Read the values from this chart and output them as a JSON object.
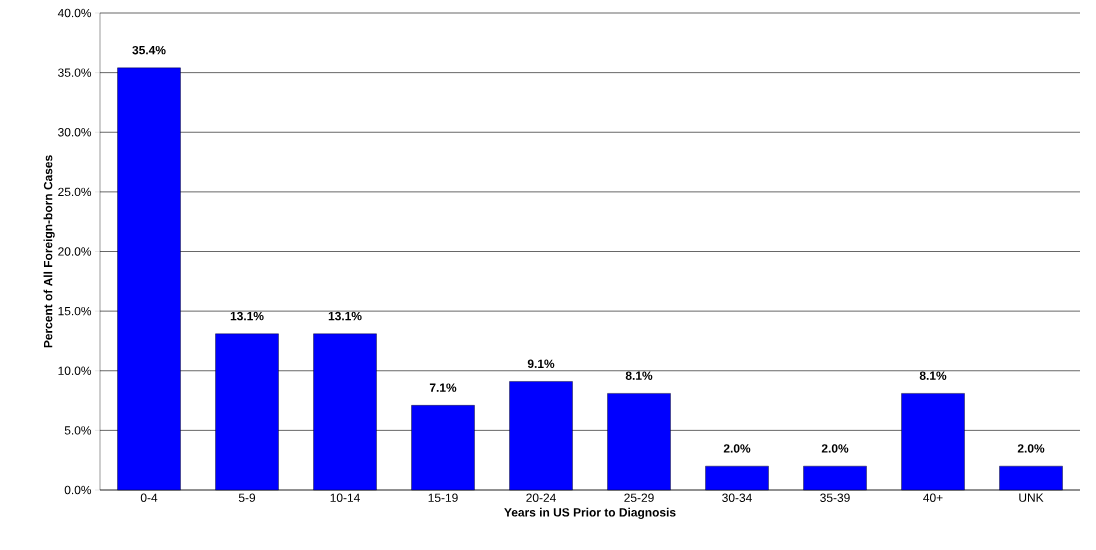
{
  "chart_data": {
    "type": "bar",
    "xlabel": "Years in US Prior to Diagnosis",
    "ylabel": "Percent of All Foreign-born Cases",
    "categories": [
      "0-4",
      "5-9",
      "10-14",
      "15-19",
      "20-24",
      "25-29",
      "30-34",
      "35-39",
      "40+",
      "UNK"
    ],
    "values": [
      35.4,
      13.1,
      13.1,
      7.1,
      9.1,
      8.1,
      2.0,
      2.0,
      8.1,
      2.0
    ],
    "value_labels": [
      "35.4%",
      "13.1%",
      "13.1%",
      "7.1%",
      "9.1%",
      "8.1%",
      "2.0%",
      "2.0%",
      "8.1%",
      "2.0%"
    ],
    "color": "#0000ff",
    "ylim": [
      0,
      40
    ],
    "yticks": [
      {
        "value": 0,
        "label": "0.0%"
      },
      {
        "value": 5,
        "label": "5.0%"
      },
      {
        "value": 10,
        "label": "10.0%"
      },
      {
        "value": 15,
        "label": "15.0%"
      },
      {
        "value": 20,
        "label": "20.0%"
      },
      {
        "value": 25,
        "label": "25.0%"
      },
      {
        "value": 30,
        "label": "30.0%"
      },
      {
        "value": 35,
        "label": "35.0%"
      },
      {
        "value": 40,
        "label": "40.0%"
      }
    ],
    "grid": "y"
  }
}
